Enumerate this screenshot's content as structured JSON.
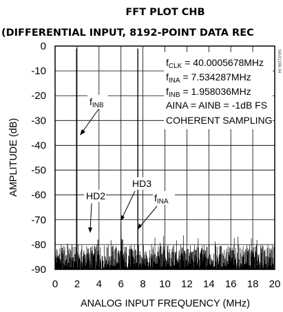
{
  "chart_data": {
    "type": "line",
    "title": "FFT PLOT CHB",
    "subtitle": "(DIFFERENTIAL INPUT, 8192-POINT DATA REC",
    "xlabel": "ANALOG INPUT FREQUENCY (MHz)",
    "ylabel": "AMPLITUDE (dB)",
    "xlim": [
      0,
      20
    ],
    "ylim": [
      -90,
      0
    ],
    "xticks": [
      "0",
      "2",
      "4",
      "6",
      "8",
      "10",
      "12",
      "14",
      "16",
      "18",
      "20"
    ],
    "yticks": [
      "0",
      "-10",
      "-20",
      "-30",
      "-40",
      "-50",
      "-60",
      "-70",
      "-80",
      "-90"
    ],
    "grid": true,
    "noise_floor_db": -85,
    "series": [
      {
        "x": [
          1.958,
          2.1,
          3.0,
          3.9,
          5.0,
          5.5,
          6.0,
          7.0,
          7.534,
          8.0,
          10.0,
          12.0,
          14.0,
          16.0,
          18.0,
          20.0
        ],
        "y": [
          -1,
          -84,
          -85,
          -78,
          -84,
          -85,
          -71,
          -85,
          -1,
          -84,
          -85,
          -85,
          -85,
          -85,
          -85,
          -85
        ]
      }
    ],
    "annotations": {
      "finb_label": "f",
      "finb_sub": "INB",
      "hd2": "HD2",
      "hd3": "HD3",
      "fina_label": "f",
      "fina_sub": "INA"
    },
    "info_box": {
      "fclk_f": "f",
      "fclk_sub": "CLK",
      "fclk_val": " = 40.0005678MHz",
      "fina_f": "f",
      "fina_sub": "INA",
      "fina_val": " = 7.534287MHz",
      "finb_f": "f",
      "finb_sub": "INB",
      "finb_val": " = 1.958036MHz",
      "ampl": "AINA = AINB = -1dB FS",
      "sampling": "COHERENT SAMPLING"
    },
    "side_label": "MAX1186 04"
  }
}
